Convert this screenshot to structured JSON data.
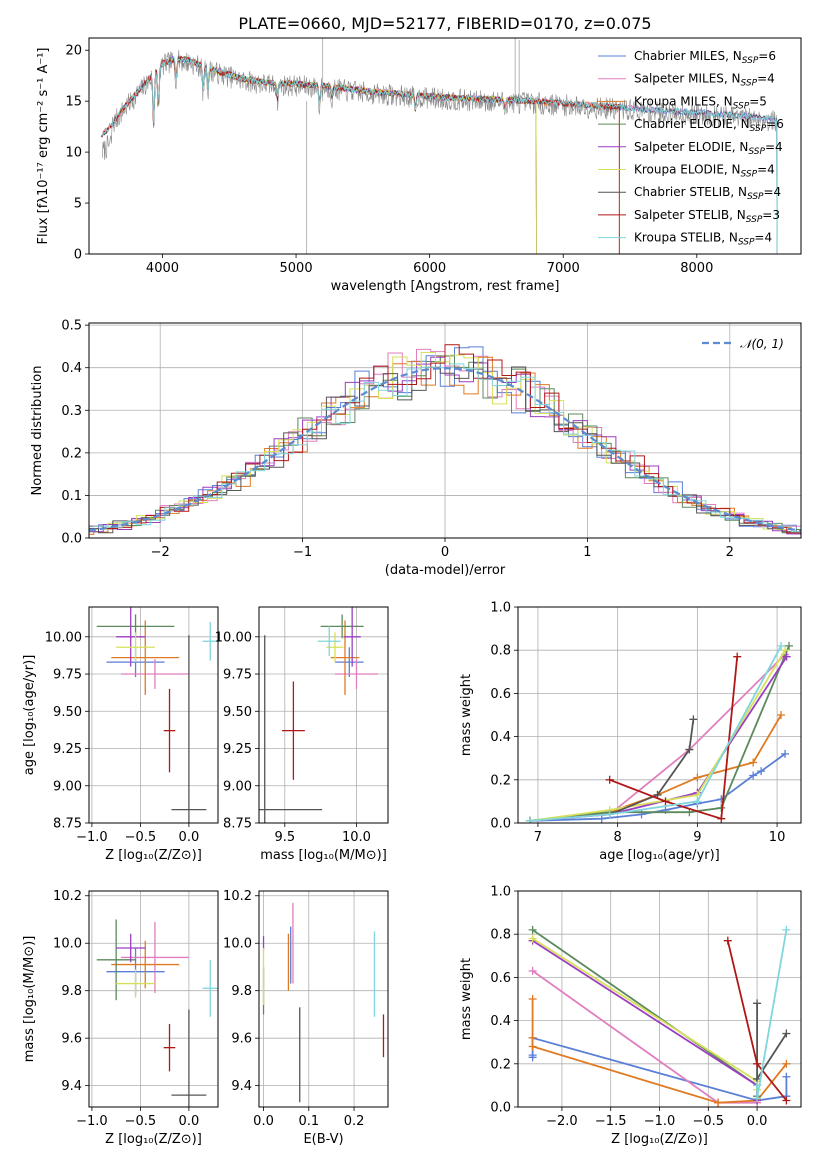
{
  "title": "PLATE=0660, MJD=52177, FIBERID=0170, z=0.075",
  "colors": {
    "chab_miles": "#5a7fd6",
    "salp_miles": "#e07fbf",
    "krou_miles": "#e07a22",
    "chab_elodie": "#5c8a5c",
    "salp_elodie": "#9b3fc0",
    "krou_elodie": "#d6e05a",
    "chab_stelib": "#555555",
    "salp_stelib": "#b01818",
    "krou_stelib": "#7fd6dc",
    "data": "#888888"
  },
  "chart_data": [
    {
      "id": "spectrum",
      "type": "line",
      "title": "PLATE=0660, MJD=52177, FIBERID=0170, z=0.075",
      "xlabel": "wavelength [Angstrom, rest frame]",
      "ylabel": "Flux [fλ10⁻¹⁷ erg cm⁻² s⁻¹ A⁻¹]",
      "xlim": [
        3450,
        8780
      ],
      "ylim": [
        0,
        21.2
      ],
      "xticks": [
        4000,
        5000,
        6000,
        7000,
        8000
      ],
      "yticks": [
        0,
        5,
        10,
        15,
        20
      ],
      "grid": false,
      "legend_position": "top-right",
      "continuum_wavelength": [
        3550,
        3600,
        3700,
        3800,
        3900,
        4000,
        4100,
        4200,
        4400,
        4600,
        4800,
        5000,
        5200,
        5400,
        5600,
        5800,
        6000,
        6200,
        6400,
        6600,
        6800,
        7000,
        7200,
        7400,
        7600,
        7800,
        8000,
        8200,
        8400,
        8600
      ],
      "continuum_flux": [
        11.5,
        12.2,
        14.0,
        15.5,
        17.0,
        18.5,
        19.0,
        18.8,
        17.8,
        17.0,
        16.6,
        16.5,
        16.3,
        16.0,
        15.7,
        15.5,
        15.3,
        15.1,
        15.0,
        14.9,
        14.8,
        14.6,
        14.4,
        14.2,
        14.0,
        13.8,
        13.7,
        13.5,
        13.3,
        13.0
      ],
      "series": [
        {
          "key": "chab_miles",
          "name": "Chabrier MILES, N",
          "n": "6",
          "start": 3550,
          "end": 8600
        },
        {
          "key": "salp_miles",
          "name": "Salpeter MILES, N",
          "n": "4",
          "start": 3550,
          "end": 8600
        },
        {
          "key": "krou_miles",
          "name": "Kroupa MILES, N",
          "n": "5",
          "start": 3540,
          "end": 7420
        },
        {
          "key": "chab_elodie",
          "name": "Chabrier ELODIE, N",
          "n": "6",
          "start": 3900,
          "end": 6800
        },
        {
          "key": "salp_elodie",
          "name": "Salpeter ELODIE, N",
          "n": "4",
          "start": 3900,
          "end": 6800
        },
        {
          "key": "krou_elodie",
          "name": "Kroupa ELODIE, N",
          "n": "4",
          "start": 3900,
          "end": 6800
        },
        {
          "key": "chab_stelib",
          "name": "Chabrier STELIB, N",
          "n": "4",
          "start": 3550,
          "end": 8600
        },
        {
          "key": "salp_stelib",
          "name": "Salpeter STELIB, N",
          "n": "3",
          "start": 3540,
          "end": 7420
        },
        {
          "key": "krou_stelib",
          "name": "Kroupa STELIB, N",
          "n": "4",
          "start": 3550,
          "end": 8600
        }
      ],
      "legend_subscript": "SSP"
    },
    {
      "id": "residuals",
      "type": "line",
      "xlabel": "(data-model)/error",
      "ylabel": "Normed distribution",
      "xlim": [
        -2.5,
        2.5
      ],
      "ylim": [
        0,
        0.505
      ],
      "xticks": [
        -2,
        -1,
        0,
        1,
        2
      ],
      "yticks": [
        0.0,
        0.1,
        0.2,
        0.3,
        0.4,
        0.5
      ],
      "grid": true,
      "legend_position": "top-right",
      "reference_curve": "𝒩(0, 1)",
      "histogram_bin_width": 0.1
    },
    {
      "id": "age_vs_Z",
      "type": "scatter",
      "xlabel": "Z [log₁₀(Z/Z⊙)]",
      "ylabel": "age  [log₁₀(age/yr)]",
      "xlim": [
        -1.03,
        0.3
      ],
      "ylim": [
        8.75,
        10.2
      ],
      "xticks": [
        -1.0,
        -0.5,
        0.0
      ],
      "yticks": [
        8.75,
        9.0,
        9.25,
        9.5,
        9.75,
        10.0
      ],
      "grid": true,
      "points": [
        {
          "key": "chab_miles",
          "x": -0.55,
          "xerr": 0.3,
          "y": 9.83,
          "yerr": 0.1
        },
        {
          "key": "salp_miles",
          "x": -0.35,
          "xerr": 0.35,
          "y": 9.75,
          "yerr": 0.1
        },
        {
          "key": "krou_miles",
          "x": -0.45,
          "xerr": 0.35,
          "y": 9.86,
          "yerr": 0.25
        },
        {
          "key": "chab_elodie",
          "x": -0.55,
          "xerr": 0.4,
          "y": 10.07,
          "yerr": 0.08
        },
        {
          "key": "salp_elodie",
          "x": -0.6,
          "xerr": 0.15,
          "y": 10.0,
          "yerr": 0.2
        },
        {
          "key": "krou_elodie",
          "x": -0.55,
          "xerr": 0.2,
          "y": 9.93,
          "yerr": 0.1
        },
        {
          "key": "chab_stelib",
          "x": 0.0,
          "xerr": 0.18,
          "y": 8.84,
          "yerr": 1.17
        },
        {
          "key": "salp_stelib",
          "x": -0.2,
          "xerr": 0.06,
          "y": 9.37,
          "yerr": 0.28
        },
        {
          "key": "krou_stelib",
          "x": 0.22,
          "xerr": 0.08,
          "y": 9.97,
          "yerr": 0.13
        }
      ]
    },
    {
      "id": "age_vs_mass",
      "type": "scatter",
      "xlabel": "mass [log₁₀(M/M⊙)]",
      "ylabel": "",
      "xlim": [
        9.32,
        10.22
      ],
      "ylim": [
        8.75,
        10.2
      ],
      "xticks": [
        9.5,
        10.0
      ],
      "yticks": [
        8.75,
        9.0,
        9.25,
        9.5,
        9.75,
        10.0
      ],
      "grid": true,
      "points": [
        {
          "key": "chab_miles",
          "x": 9.95,
          "xerr": 0.1,
          "y": 9.83,
          "yerr": 0.1
        },
        {
          "key": "salp_miles",
          "x": 10.0,
          "xerr": 0.15,
          "y": 9.75,
          "yerr": 0.1
        },
        {
          "key": "krou_miles",
          "x": 9.92,
          "xerr": 0.1,
          "y": 9.86,
          "yerr": 0.25
        },
        {
          "key": "chab_elodie",
          "x": 9.9,
          "xerr": 0.15,
          "y": 10.07,
          "yerr": 0.08
        },
        {
          "key": "salp_elodie",
          "x": 9.97,
          "xerr": 0.06,
          "y": 10.0,
          "yerr": 0.2
        },
        {
          "key": "krou_elodie",
          "x": 9.85,
          "xerr": 0.06,
          "y": 9.93,
          "yerr": 0.1
        },
        {
          "key": "chab_stelib",
          "x": 9.36,
          "xerr": 0.4,
          "y": 8.84,
          "yerr": 1.17
        },
        {
          "key": "salp_stelib",
          "x": 9.56,
          "xerr": 0.08,
          "y": 9.37,
          "yerr": 0.33
        },
        {
          "key": "krou_stelib",
          "x": 9.81,
          "xerr": 0.08,
          "y": 9.97,
          "yerr": 0.1
        }
      ]
    },
    {
      "id": "weight_vs_age",
      "type": "line",
      "xlabel": "age  [log₁₀(age/yr)]",
      "ylabel": "mass weight",
      "xlim": [
        6.75,
        10.3
      ],
      "ylim": [
        0,
        1.0
      ],
      "xticks": [
        7,
        8,
        9,
        10
      ],
      "yticks": [
        0.0,
        0.2,
        0.4,
        0.6,
        0.8,
        1.0
      ],
      "grid": true,
      "series": [
        {
          "key": "chab_miles",
          "x": [
            6.9,
            7.8,
            8.3,
            8.6,
            9.0,
            9.3,
            9.7,
            9.8,
            10.1
          ],
          "y": [
            0.01,
            0.02,
            0.04,
            0.06,
            0.09,
            0.11,
            0.22,
            0.24,
            0.32
          ]
        },
        {
          "key": "salp_miles",
          "x": [
            6.9,
            7.9,
            8.9,
            10.1
          ],
          "y": [
            0.01,
            0.04,
            0.34,
            0.78
          ]
        },
        {
          "key": "krou_miles",
          "x": [
            6.9,
            7.9,
            8.5,
            9.0,
            9.7,
            10.05
          ],
          "y": [
            0.01,
            0.05,
            0.13,
            0.21,
            0.28,
            0.5
          ]
        },
        {
          "key": "chab_elodie",
          "x": [
            6.9,
            7.9,
            8.9,
            9.3,
            10.15
          ],
          "y": [
            0.01,
            0.05,
            0.05,
            0.07,
            0.82
          ]
        },
        {
          "key": "salp_elodie",
          "x": [
            6.9,
            7.9,
            9.0,
            10.12
          ],
          "y": [
            0.01,
            0.04,
            0.14,
            0.77
          ]
        },
        {
          "key": "krou_elodie",
          "x": [
            6.9,
            7.9,
            9.0,
            10.1
          ],
          "y": [
            0.01,
            0.06,
            0.13,
            0.8
          ]
        },
        {
          "key": "chab_stelib",
          "x": [
            7.9,
            8.5,
            8.9,
            8.95
          ],
          "y": [
            0.04,
            0.13,
            0.34,
            0.48
          ]
        },
        {
          "key": "salp_stelib",
          "x": [
            7.9,
            8.6,
            9.3,
            9.5
          ],
          "y": [
            0.2,
            0.1,
            0.02,
            0.77
          ]
        },
        {
          "key": "krou_stelib",
          "x": [
            6.9,
            7.9,
            9.0,
            10.05
          ],
          "y": [
            0.01,
            0.04,
            0.1,
            0.82
          ]
        }
      ]
    },
    {
      "id": "mass_vs_Z",
      "type": "scatter",
      "xlabel": "Z [log₁₀(Z/Z⊙)]",
      "ylabel": "mass [log₁₀(M/M⊙)]",
      "xlim": [
        -1.03,
        0.3
      ],
      "ylim": [
        9.31,
        10.22
      ],
      "xticks": [
        -1.0,
        -0.5,
        0.0
      ],
      "yticks": [
        9.4,
        9.6,
        9.8,
        10.0,
        10.2
      ],
      "grid": true,
      "points": [
        {
          "key": "chab_miles",
          "x": -0.55,
          "xerr": 0.3,
          "y": 9.88,
          "yerr": 0.1
        },
        {
          "key": "salp_miles",
          "x": -0.35,
          "xerr": 0.35,
          "y": 9.94,
          "yerr": 0.15
        },
        {
          "key": "krou_miles",
          "x": -0.45,
          "xerr": 0.35,
          "y": 9.91,
          "yerr": 0.1
        },
        {
          "key": "chab_elodie",
          "x": -0.75,
          "xerr": 0.2,
          "y": 9.93,
          "yerr": 0.17
        },
        {
          "key": "salp_elodie",
          "x": -0.6,
          "xerr": 0.15,
          "y": 9.98,
          "yerr": 0.06
        },
        {
          "key": "krou_elodie",
          "x": -0.55,
          "xerr": 0.2,
          "y": 9.83,
          "yerr": 0.06
        },
        {
          "key": "chab_stelib",
          "x": 0.0,
          "xerr": 0.18,
          "y": 9.36,
          "yerr": 0.36
        },
        {
          "key": "salp_stelib",
          "x": -0.2,
          "xerr": 0.06,
          "y": 9.56,
          "yerr": 0.1
        },
        {
          "key": "krou_stelib",
          "x": 0.22,
          "xerr": 0.08,
          "y": 9.81,
          "yerr": 0.12
        }
      ]
    },
    {
      "id": "mass_vs_ebv",
      "type": "scatter",
      "xlabel": "E(B-V)",
      "ylabel": "",
      "xlim": [
        -0.01,
        0.275
      ],
      "ylim": [
        9.31,
        10.22
      ],
      "xticks": [
        0.0,
        0.1,
        0.2
      ],
      "yticks": [
        9.4,
        9.6,
        9.8,
        10.0,
        10.2
      ],
      "grid": true,
      "points": [
        {
          "key": "chab_miles",
          "x": 0.06,
          "xerr": 0,
          "y": 9.95,
          "yerr": 0.12
        },
        {
          "key": "salp_miles",
          "x": 0.065,
          "xerr": 0,
          "y": 10.0,
          "yerr": 0.17
        },
        {
          "key": "krou_miles",
          "x": 0.055,
          "xerr": 0,
          "y": 9.92,
          "yerr": 0.12
        },
        {
          "key": "chab_elodie",
          "x": 0.0,
          "xerr": 0,
          "y": 9.8,
          "yerr": 0.1
        },
        {
          "key": "salp_elodie",
          "x": 0.0,
          "xerr": 0,
          "y": 10.0,
          "yerr": 0.03
        },
        {
          "key": "krou_elodie",
          "x": 0.0,
          "xerr": 0,
          "y": 9.86,
          "yerr": 0.12
        },
        {
          "key": "chab_stelib",
          "x": 0.08,
          "xerr": 0,
          "y": 9.53,
          "yerr": 0.2
        },
        {
          "key": "salp_stelib",
          "x": 0.265,
          "xerr": 0,
          "y": 9.61,
          "yerr": 0.09
        },
        {
          "key": "krou_stelib",
          "x": 0.245,
          "xerr": 0,
          "y": 9.87,
          "yerr": 0.18
        }
      ]
    },
    {
      "id": "weight_vs_Z",
      "type": "line",
      "xlabel": "Z [log₁₀(Z/Z⊙)]",
      "ylabel": "mass weight",
      "xlim": [
        -2.45,
        0.45
      ],
      "ylim": [
        0,
        1.0
      ],
      "xticks": [
        -2.0,
        -1.5,
        -1.0,
        -0.5,
        0.0
      ],
      "yticks": [
        0.0,
        0.2,
        0.4,
        0.6,
        0.8,
        1.0
      ],
      "grid": true,
      "series": [
        {
          "key": "chab_miles",
          "x": [
            -2.3,
            -2.3,
            -2.3,
            0.0,
            0.3,
            0.3
          ],
          "y": [
            0.23,
            0.24,
            0.32,
            0.03,
            0.05,
            0.14
          ]
        },
        {
          "key": "salp_miles",
          "x": [
            -2.3,
            -0.4,
            0.0
          ],
          "y": [
            0.63,
            0.02,
            0.02
          ]
        },
        {
          "key": "krou_miles",
          "x": [
            -2.3,
            -2.3,
            -2.3,
            -0.4,
            0.0,
            0.3
          ],
          "y": [
            0.5,
            0.32,
            0.28,
            0.02,
            0.03,
            0.2
          ]
        },
        {
          "key": "chab_elodie",
          "x": [
            -2.3,
            0.0,
            0.0
          ],
          "y": [
            0.82,
            0.1,
            0.05
          ]
        },
        {
          "key": "salp_elodie",
          "x": [
            -2.3,
            0.0,
            0.0
          ],
          "y": [
            0.77,
            0.1,
            0.03
          ]
        },
        {
          "key": "krou_elodie",
          "x": [
            -2.3,
            0.0,
            0.0
          ],
          "y": [
            0.78,
            0.12,
            0.08
          ]
        },
        {
          "key": "chab_stelib",
          "x": [
            0.0,
            0.0,
            0.3
          ],
          "y": [
            0.48,
            0.13,
            0.34
          ]
        },
        {
          "key": "salp_stelib",
          "x": [
            -0.3,
            0.0,
            0.3
          ],
          "y": [
            0.77,
            0.2,
            0.03
          ]
        },
        {
          "key": "krou_stelib",
          "x": [
            0.0,
            0.0,
            0.3
          ],
          "y": [
            0.1,
            0.04,
            0.82
          ]
        }
      ]
    }
  ]
}
